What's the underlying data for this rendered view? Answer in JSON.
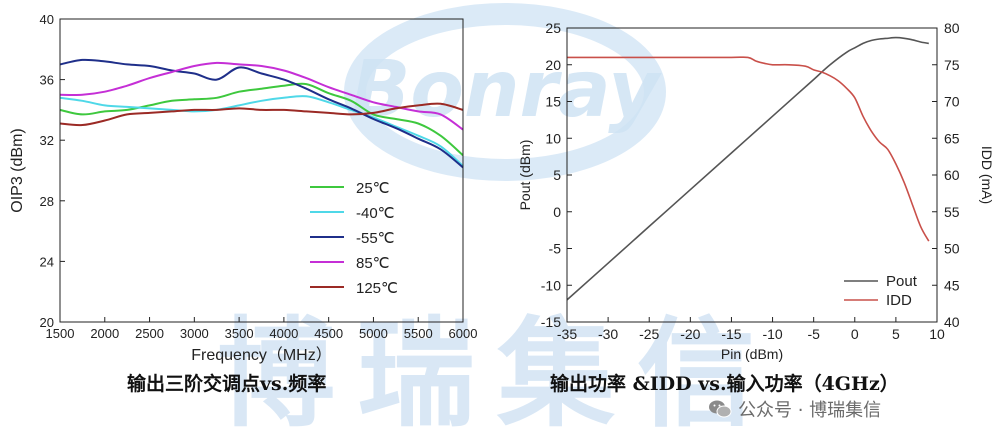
{
  "watermark": {
    "logo_text": "Bonray",
    "cn_text": "博瑞集信"
  },
  "captions": {
    "left": "输出三阶交调点vs.频率",
    "right": "输出功率 &IDD vs.输入功率（4GHz）"
  },
  "footer": {
    "source": "公众号 · 博瑞集信"
  },
  "colors": {
    "c25": "#3ec83e",
    "cm40": "#4fd8e8",
    "cm55": "#1f2f8a",
    "c85": "#c52fd6",
    "c125": "#9b2a25",
    "pout": "#555555",
    "idd": "#c9504a"
  },
  "chart_data": [
    {
      "type": "line",
      "xlabel": "Frequency（MHz）",
      "ylabel": "OIP3 (dBm)",
      "xlim": [
        1500,
        6000
      ],
      "ylim": [
        20,
        40
      ],
      "xticks": [
        "1500",
        "2000",
        "2500",
        "3000",
        "3500",
        "4000",
        "4500",
        "5000",
        "5500",
        "6000"
      ],
      "yticks": [
        "20",
        "24",
        "28",
        "32",
        "36",
        "40"
      ],
      "legend_position": "bottom-center",
      "x": [
        1500,
        1750,
        2000,
        2250,
        2500,
        2750,
        3000,
        3250,
        3500,
        3750,
        4000,
        4250,
        4500,
        4750,
        5000,
        5250,
        5500,
        5750,
        6000
      ],
      "series": [
        {
          "name": "25℃",
          "color_key": "c25",
          "values": [
            34.0,
            33.7,
            33.9,
            34.0,
            34.3,
            34.6,
            34.7,
            34.8,
            35.2,
            35.4,
            35.6,
            35.7,
            35.1,
            34.6,
            33.7,
            33.4,
            33.1,
            32.3,
            31.0
          ]
        },
        {
          "name": "-40℃",
          "color_key": "cm40",
          "values": [
            34.8,
            34.6,
            34.3,
            34.2,
            34.1,
            34.0,
            33.9,
            34.0,
            34.3,
            34.6,
            34.8,
            34.9,
            34.5,
            34.0,
            33.5,
            32.9,
            32.3,
            31.6,
            30.3
          ]
        },
        {
          "name": "-55℃",
          "color_key": "cm55",
          "values": [
            37.0,
            37.3,
            37.2,
            37.0,
            36.9,
            36.6,
            36.4,
            36.0,
            36.8,
            36.4,
            36.0,
            35.4,
            34.7,
            34.1,
            33.4,
            32.8,
            32.1,
            31.4,
            30.2
          ]
        },
        {
          "name": "85℃",
          "color_key": "c85",
          "values": [
            35.0,
            35.0,
            35.2,
            35.6,
            36.1,
            36.5,
            36.9,
            37.1,
            37.0,
            36.9,
            36.6,
            36.1,
            35.5,
            35.0,
            34.5,
            34.2,
            33.9,
            33.7,
            32.7
          ]
        },
        {
          "name": "125℃",
          "color_key": "c125",
          "values": [
            33.1,
            33.0,
            33.3,
            33.7,
            33.8,
            33.9,
            34.0,
            34.0,
            34.1,
            34.0,
            34.0,
            33.9,
            33.8,
            33.7,
            33.8,
            34.1,
            34.3,
            34.4,
            34.0
          ]
        }
      ]
    },
    {
      "type": "line",
      "xlabel": "Pin (dBm)",
      "ylabel": "Pout (dBm)",
      "ylabel_right": "IDD (mA)",
      "xlim": [
        -35,
        10
      ],
      "ylim": [
        -15,
        25
      ],
      "ylim_right": [
        40,
        80
      ],
      "xticks": [
        "-35",
        "-30",
        "-25",
        "-20",
        "-15",
        "-10",
        "-5",
        "0",
        "5",
        "10"
      ],
      "yticks": [
        "-15",
        "-10",
        "-5",
        "0",
        "5",
        "10",
        "15",
        "20",
        "25"
      ],
      "yticks_right": [
        "40",
        "45",
        "50",
        "55",
        "60",
        "65",
        "70",
        "75",
        "80"
      ],
      "legend_position": "bottom-right",
      "series": [
        {
          "name": "Pout",
          "color_key": "pout",
          "axis": "left",
          "x": [
            -35,
            -30,
            -25,
            -20,
            -15,
            -10,
            -7,
            -5,
            -3,
            -1,
            0,
            1,
            2,
            3,
            4,
            5,
            6,
            7,
            8,
            9
          ],
          "values": [
            -12,
            -7,
            -2,
            3,
            8,
            13,
            16,
            18,
            20,
            21.7,
            22.3,
            22.9,
            23.3,
            23.5,
            23.6,
            23.7,
            23.6,
            23.4,
            23.1,
            22.9
          ]
        },
        {
          "name": "IDD",
          "color_key": "idd",
          "axis": "right",
          "x": [
            -35,
            -30,
            -25,
            -20,
            -15,
            -13,
            -12,
            -11,
            -10,
            -8,
            -6,
            -5,
            -4,
            -3,
            -2,
            -1,
            0,
            1,
            2,
            3,
            4,
            5,
            6,
            7,
            8,
            9
          ],
          "values": [
            76,
            76,
            76,
            76,
            76,
            76,
            75.5,
            75.2,
            75,
            75,
            74.8,
            74.3,
            74,
            73.5,
            72.8,
            71.8,
            70.5,
            68,
            66,
            64.5,
            63.5,
            61.5,
            59,
            56,
            53,
            51
          ]
        }
      ]
    }
  ]
}
